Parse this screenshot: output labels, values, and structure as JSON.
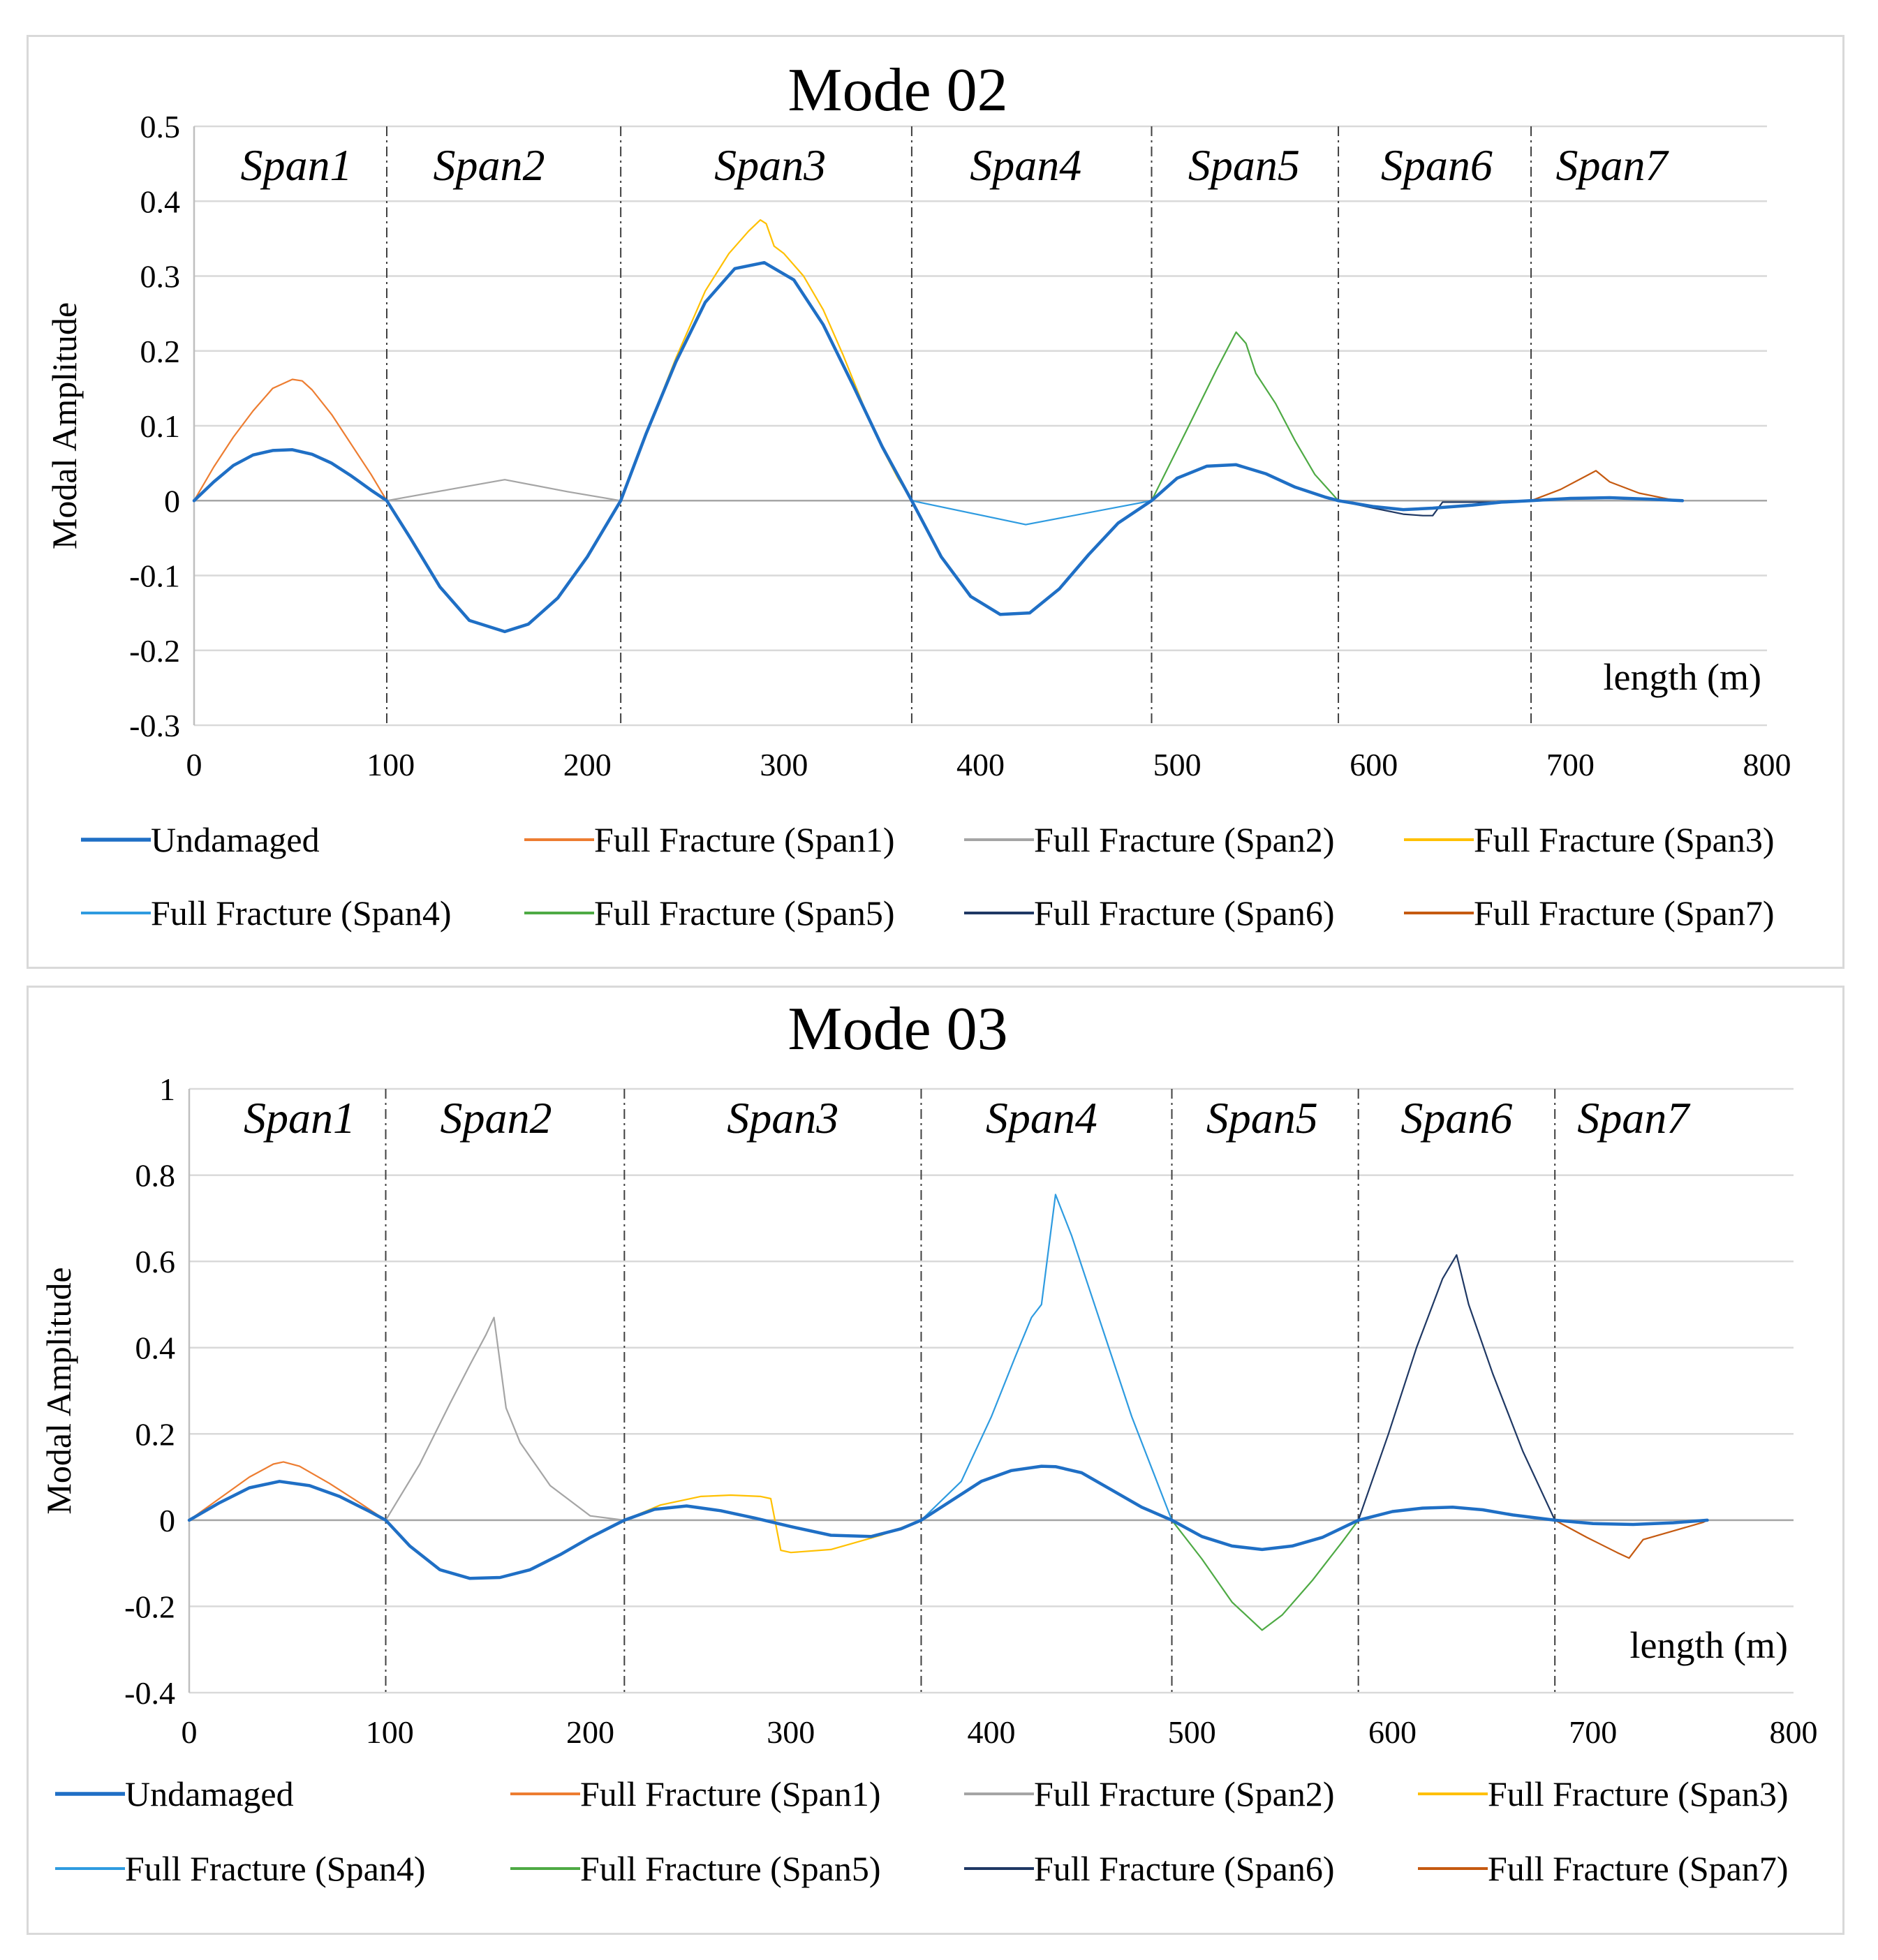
{
  "chart_data": [
    {
      "type": "line",
      "title": "Mode 02",
      "xlabel": "length (m)",
      "ylabel": "Modal Amplitude",
      "xlim": [
        0,
        800
      ],
      "ylim": [
        -0.3,
        0.5
      ],
      "xticks": [
        0,
        100,
        200,
        300,
        400,
        500,
        600,
        700,
        800
      ],
      "xtick_labels": [
        "0",
        "100",
        "200",
        "300",
        "400",
        "500",
        "600",
        "700",
        "800"
      ],
      "yticks": [
        -0.3,
        -0.2,
        -0.1,
        0,
        0.1,
        0.2,
        0.3,
        0.4,
        0.5
      ],
      "ytick_labels": [
        "-0.3",
        "-0.2",
        "-0.1",
        "0",
        "0.1",
        "0.2",
        "0.3",
        "0.4",
        "0.5"
      ],
      "grid": true,
      "span_boundaries": [
        98,
        217,
        365,
        487,
        582,
        680
      ],
      "span_labels": [
        {
          "text": "Span1",
          "x": 52
        },
        {
          "text": "Span2",
          "x": 150
        },
        {
          "text": "Span3",
          "x": 293
        },
        {
          "text": "Span4",
          "x": 423
        },
        {
          "text": "Span5",
          "x": 534
        },
        {
          "text": "Span6",
          "x": 632
        },
        {
          "text": "Span7",
          "x": 721
        }
      ],
      "legend_position": "bottom",
      "series": [
        {
          "name": "Full Fracture (Span1)",
          "color": "#ed7d31",
          "width": 2.2,
          "x": [
            0,
            10,
            20,
            30,
            40,
            50,
            55,
            60,
            70,
            80,
            90,
            98
          ],
          "y": [
            0,
            0.045,
            0.085,
            0.12,
            0.15,
            0.162,
            0.16,
            0.148,
            0.115,
            0.075,
            0.035,
            0
          ]
        },
        {
          "name": "Full Fracture (Span2)",
          "color": "#a5a5a5",
          "width": 2.2,
          "x": [
            98,
            130,
            158,
            190,
            217
          ],
          "y": [
            0,
            0.015,
            0.028,
            0.012,
            0
          ]
        },
        {
          "name": "Full Fracture (Span3)",
          "color": "#ffc000",
          "width": 2.2,
          "x": [
            217,
            230,
            245,
            260,
            272,
            282,
            288,
            291,
            295,
            300,
            310,
            320,
            330,
            340,
            350,
            358,
            365
          ],
          "y": [
            0,
            0.09,
            0.19,
            0.28,
            0.33,
            0.36,
            0.375,
            0.37,
            0.34,
            0.33,
            0.3,
            0.255,
            0.195,
            0.13,
            0.07,
            0.03,
            0
          ]
        },
        {
          "name": "Full Fracture (Span4)",
          "color": "#2e9be0",
          "width": 2.2,
          "x": [
            365,
            423,
            487
          ],
          "y": [
            0,
            -0.032,
            0
          ]
        },
        {
          "name": "Full Fracture (Span5)",
          "color": "#4eaa44",
          "width": 2.2,
          "x": [
            487,
            505,
            520,
            530,
            535,
            540,
            550,
            560,
            570,
            582
          ],
          "y": [
            0,
            0.095,
            0.175,
            0.225,
            0.21,
            0.17,
            0.13,
            0.08,
            0.035,
            0
          ]
        },
        {
          "name": "Full Fracture (Span6)",
          "color": "#1f3864",
          "width": 2.2,
          "x": [
            582,
            600,
            615,
            625,
            630,
            635,
            660,
            680
          ],
          "y": [
            0,
            -0.01,
            -0.018,
            -0.02,
            -0.02,
            -0.002,
            -0.002,
            0
          ]
        },
        {
          "name": "Full Fracture (Span7)",
          "color": "#c55a11",
          "width": 2.2,
          "x": [
            680,
            695,
            708,
            713,
            720,
            735,
            750,
            757
          ],
          "y": [
            0,
            0.015,
            0.033,
            0.04,
            0.025,
            0.01,
            0.002,
            0
          ]
        },
        {
          "name": "Undamaged",
          "color": "#1f6fc5",
          "width": 4.5,
          "x": [
            0,
            10,
            20,
            30,
            40,
            50,
            60,
            70,
            80,
            90,
            98,
            110,
            125,
            140,
            158,
            170,
            185,
            200,
            217,
            230,
            245,
            260,
            275,
            290,
            305,
            320,
            335,
            350,
            365,
            380,
            395,
            410,
            425,
            440,
            455,
            470,
            487,
            500,
            515,
            530,
            545,
            560,
            575,
            582,
            600,
            615,
            630,
            650,
            665,
            680,
            700,
            720,
            740,
            757
          ],
          "y": [
            0,
            0.025,
            0.047,
            0.061,
            0.067,
            0.068,
            0.062,
            0.05,
            0.033,
            0.014,
            0,
            -0.05,
            -0.115,
            -0.16,
            -0.175,
            -0.165,
            -0.13,
            -0.075,
            0,
            0.09,
            0.185,
            0.265,
            0.31,
            0.318,
            0.295,
            0.235,
            0.155,
            0.072,
            0,
            -0.075,
            -0.128,
            -0.152,
            -0.15,
            -0.118,
            -0.072,
            -0.03,
            0,
            0.03,
            0.046,
            0.048,
            0.036,
            0.018,
            0.005,
            0,
            -0.008,
            -0.012,
            -0.01,
            -0.006,
            -0.002,
            0,
            0.003,
            0.004,
            0.002,
            0
          ]
        }
      ],
      "legend": {
        "items": [
          {
            "label": "Undamaged",
            "color": "#1f6fc5",
            "width": 4.5
          },
          {
            "label": "Full Fracture (Span1)",
            "color": "#ed7d31",
            "width": 3
          },
          {
            "label": "Full Fracture (Span2)",
            "color": "#a5a5a5",
            "width": 3
          },
          {
            "label": "Full Fracture (Span3)",
            "color": "#ffc000",
            "width": 3
          },
          {
            "label": "Full Fracture (Span4)",
            "color": "#2e9be0",
            "width": 3
          },
          {
            "label": "Full Fracture (Span5)",
            "color": "#4eaa44",
            "width": 3
          },
          {
            "label": "Full Fracture (Span6)",
            "color": "#1f3864",
            "width": 3
          },
          {
            "label": "Full Fracture (Span7)",
            "color": "#c55a11",
            "width": 3
          }
        ]
      }
    },
    {
      "type": "line",
      "title": "Mode 03",
      "xlabel": "length (m)",
      "ylabel": "Modal Amplitude",
      "xlim": [
        0,
        800
      ],
      "ylim": [
        -0.4,
        1
      ],
      "xticks": [
        0,
        100,
        200,
        300,
        400,
        500,
        600,
        700,
        800
      ],
      "xtick_labels": [
        "0",
        "100",
        "200",
        "300",
        "400",
        "500",
        "600",
        "700",
        "800"
      ],
      "yticks": [
        -0.4,
        -0.2,
        0,
        0.2,
        0.4,
        0.6,
        0.8,
        1
      ],
      "ytick_labels": [
        "-0.4",
        "-0.2",
        "0",
        "0.2",
        "0.4",
        "0.6",
        "0.8",
        "1"
      ],
      "grid": true,
      "span_boundaries": [
        98,
        217,
        365,
        490,
        583,
        681
      ],
      "span_labels": [
        {
          "text": "Span1",
          "x": 55
        },
        {
          "text": "Span2",
          "x": 153
        },
        {
          "text": "Span3",
          "x": 296
        },
        {
          "text": "Span4",
          "x": 425
        },
        {
          "text": "Span5",
          "x": 535
        },
        {
          "text": "Span6",
          "x": 632
        },
        {
          "text": "Span7",
          "x": 720
        }
      ],
      "legend_position": "bottom",
      "series": [
        {
          "name": "Full Fracture (Span1)",
          "color": "#ed7d31",
          "width": 2.2,
          "x": [
            0,
            15,
            30,
            42,
            47,
            55,
            70,
            85,
            98
          ],
          "y": [
            0,
            0.05,
            0.1,
            0.13,
            0.135,
            0.125,
            0.085,
            0.04,
            0
          ]
        },
        {
          "name": "Full Fracture (Span2)",
          "color": "#a5a5a5",
          "width": 2.2,
          "x": [
            98,
            115,
            130,
            140,
            148,
            152,
            158,
            165,
            180,
            200,
            217
          ],
          "y": [
            0,
            0.13,
            0.27,
            0.36,
            0.43,
            0.47,
            0.26,
            0.18,
            0.08,
            0.01,
            0
          ]
        },
        {
          "name": "Full Fracture (Span3)",
          "color": "#ffc000",
          "width": 2.2,
          "x": [
            217,
            235,
            255,
            270,
            285,
            290,
            295,
            300,
            320,
            345,
            365
          ],
          "y": [
            0,
            0.035,
            0.055,
            0.058,
            0.055,
            0.05,
            -0.07,
            -0.075,
            -0.068,
            -0.035,
            0
          ]
        },
        {
          "name": "Full Fracture (Span4)",
          "color": "#2e9be0",
          "width": 2.2,
          "x": [
            365,
            385,
            400,
            412,
            420,
            425,
            432,
            440,
            455,
            470,
            490
          ],
          "y": [
            0,
            0.09,
            0.24,
            0.38,
            0.47,
            0.5,
            0.755,
            0.66,
            0.45,
            0.24,
            0
          ]
        },
        {
          "name": "Full Fracture (Span5)",
          "color": "#4eaa44",
          "width": 2.2,
          "x": [
            490,
            505,
            520,
            535,
            545,
            560,
            575,
            583
          ],
          "y": [
            0,
            -0.09,
            -0.19,
            -0.255,
            -0.22,
            -0.14,
            -0.05,
            0
          ]
        },
        {
          "name": "Full Fracture (Span6)",
          "color": "#1f3864",
          "width": 2.2,
          "x": [
            583,
            598,
            612,
            625,
            632,
            638,
            650,
            665,
            681
          ],
          "y": [
            0,
            0.2,
            0.4,
            0.56,
            0.615,
            0.5,
            0.34,
            0.16,
            0
          ]
        },
        {
          "name": "Full Fracture (Span7)",
          "color": "#c55a11",
          "width": 2.2,
          "x": [
            681,
            697,
            712,
            718,
            725,
            740,
            755,
            757
          ],
          "y": [
            0,
            -0.04,
            -0.075,
            -0.088,
            -0.045,
            -0.025,
            -0.005,
            0
          ]
        },
        {
          "name": "Undamaged",
          "color": "#1f6fc5",
          "width": 4.5,
          "x": [
            0,
            15,
            30,
            45,
            60,
            75,
            90,
            98,
            110,
            125,
            140,
            155,
            170,
            185,
            200,
            217,
            232,
            248,
            265,
            282,
            300,
            320,
            340,
            355,
            365,
            380,
            395,
            410,
            425,
            432,
            445,
            460,
            475,
            490,
            505,
            520,
            535,
            550,
            565,
            583,
            600,
            615,
            630,
            645,
            660,
            681,
            700,
            720,
            740,
            757
          ],
          "y": [
            0,
            0.04,
            0.075,
            0.09,
            0.08,
            0.055,
            0.02,
            0,
            -0.06,
            -0.115,
            -0.135,
            -0.133,
            -0.115,
            -0.08,
            -0.04,
            0,
            0.025,
            0.033,
            0.022,
            0.005,
            -0.015,
            -0.035,
            -0.038,
            -0.02,
            0,
            0.045,
            0.09,
            0.115,
            0.125,
            0.124,
            0.11,
            0.07,
            0.03,
            0,
            -0.038,
            -0.06,
            -0.068,
            -0.06,
            -0.04,
            0,
            0.02,
            0.028,
            0.03,
            0.024,
            0.012,
            0,
            -0.008,
            -0.01,
            -0.006,
            0
          ]
        }
      ],
      "legend": {
        "items": [
          {
            "label": "Undamaged",
            "color": "#1f6fc5",
            "width": 4.5
          },
          {
            "label": "Full Fracture (Span1)",
            "color": "#ed7d31",
            "width": 3
          },
          {
            "label": "Full Fracture (Span2)",
            "color": "#a5a5a5",
            "width": 3
          },
          {
            "label": "Full Fracture (Span3)",
            "color": "#ffc000",
            "width": 3
          },
          {
            "label": "Full Fracture (Span4)",
            "color": "#2e9be0",
            "width": 3
          },
          {
            "label": "Full Fracture (Span5)",
            "color": "#4eaa44",
            "width": 3
          },
          {
            "label": "Full Fracture (Span6)",
            "color": "#1f3864",
            "width": 3
          },
          {
            "label": "Full Fracture (Span7)",
            "color": "#c55a11",
            "width": 3
          }
        ]
      }
    }
  ]
}
